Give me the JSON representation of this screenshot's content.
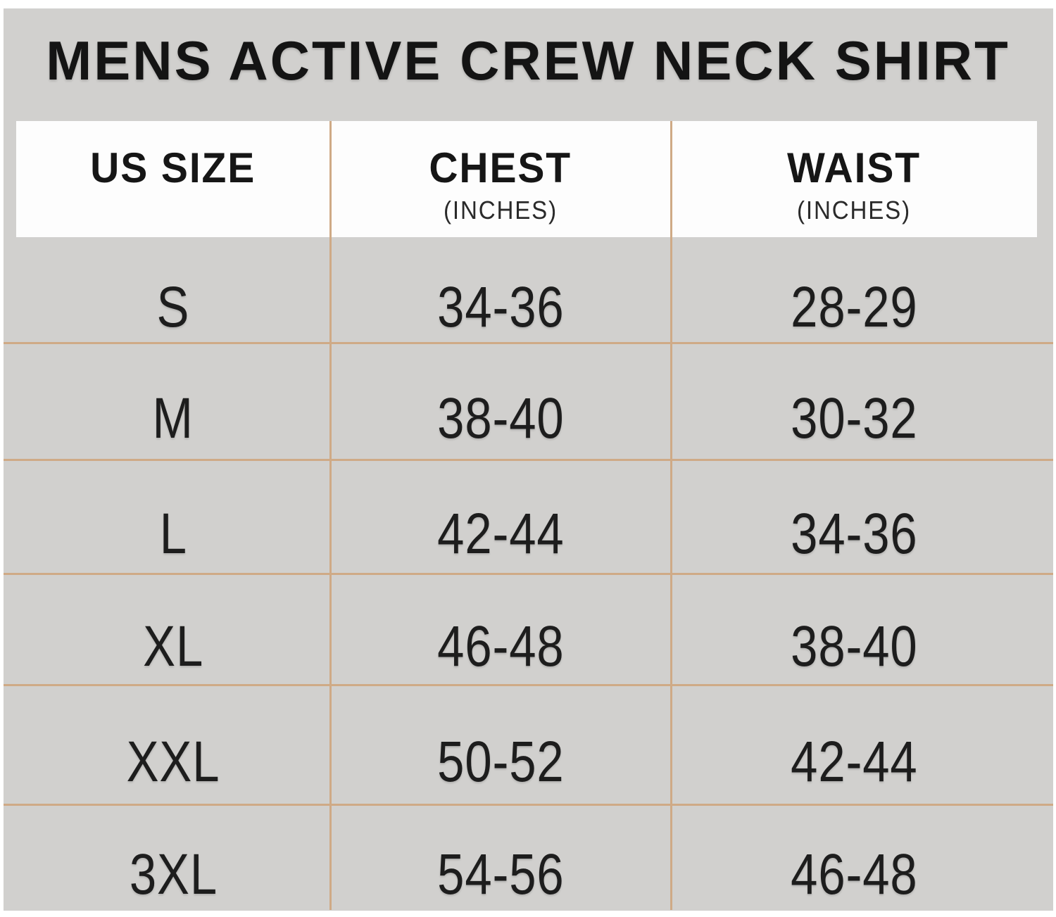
{
  "title": "MENS ACTIVE CREW NECK SHIRT",
  "header": {
    "columns": [
      {
        "label": "US SIZE",
        "sublabel": ""
      },
      {
        "label": "CHEST",
        "sublabel": "(INCHES)"
      },
      {
        "label": "WAIST",
        "sublabel": "(INCHES)"
      }
    ]
  },
  "chart_data": {
    "type": "table",
    "title": "MENS ACTIVE CREW NECK SHIRT",
    "columns": [
      "US SIZE",
      "CHEST (INCHES)",
      "WAIST (INCHES)"
    ],
    "rows": [
      {
        "size": "S",
        "chest": "34-36",
        "waist": "28-29"
      },
      {
        "size": "M",
        "chest": "38-40",
        "waist": "30-32"
      },
      {
        "size": "L",
        "chest": "42-44",
        "waist": "34-36"
      },
      {
        "size": "XL",
        "chest": "46-48",
        "waist": "38-40"
      },
      {
        "size": "XXL",
        "chest": "50-52",
        "waist": "42-44"
      },
      {
        "size": "3XL",
        "chest": "54-56",
        "waist": "46-48"
      }
    ]
  },
  "colors": {
    "page_background": "#ffffff",
    "panel_background": "#d1d0ce",
    "header_background": "#fdfdfd",
    "grid_line": "#cfaa86",
    "text": "#1d1d1d"
  }
}
